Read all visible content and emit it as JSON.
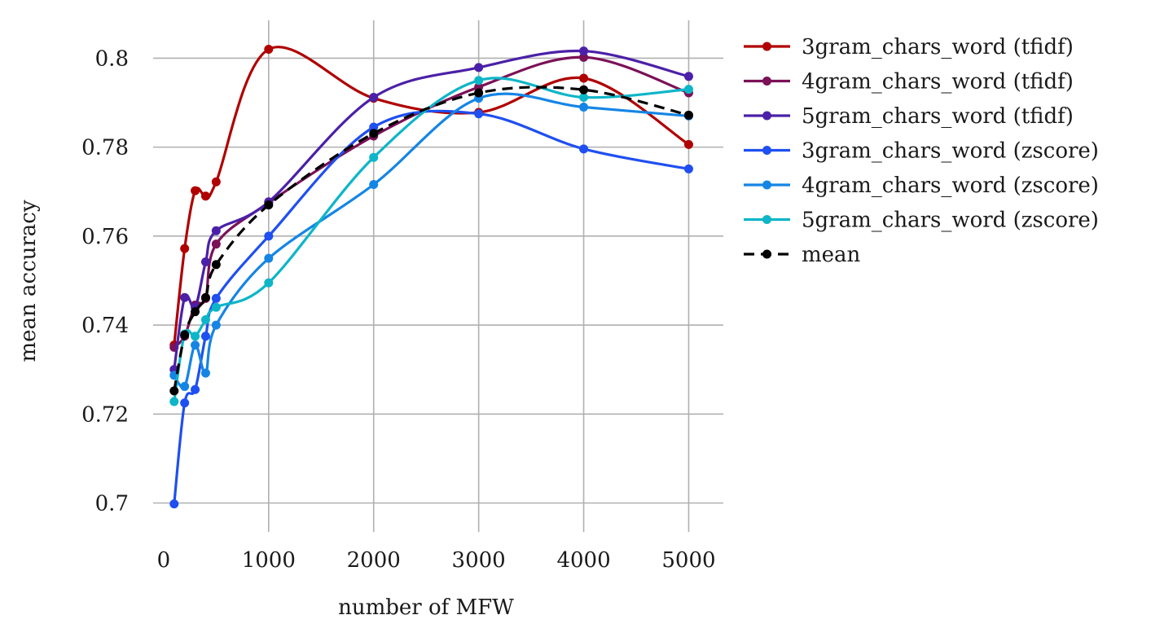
{
  "chart_data": {
    "type": "line",
    "xlabel": "number of MFW",
    "ylabel": "mean accuracy",
    "xlim": [
      -100,
      5330
    ],
    "ylim": [
      0.6935,
      0.8085
    ],
    "grid": true,
    "legend_position": "outside-right-top",
    "x": [
      100,
      200,
      300,
      400,
      500,
      1000,
      2000,
      3000,
      4000,
      5000
    ],
    "xticks": [
      0,
      1000,
      2000,
      3000,
      4000,
      5000
    ],
    "xtick_labels": [
      "0",
      "1000",
      "2000",
      "3000",
      "4000",
      "5000"
    ],
    "yticks": [
      0.7,
      0.72,
      0.74,
      0.76,
      0.78,
      0.8
    ],
    "ytick_labels": [
      "0.7",
      "0.72",
      "0.74",
      "0.76",
      "0.78",
      "0.8"
    ],
    "series": [
      {
        "name": "3gram_chars_word (tfidf)",
        "color": "#b00000",
        "dashed": false,
        "values": [
          0.7355,
          0.7572,
          0.7702,
          0.769,
          0.7722,
          0.802,
          0.791,
          0.7878,
          0.7955,
          0.7806
        ]
      },
      {
        "name": "4gram_chars_word (tfidf)",
        "color": "#7b1157",
        "dashed": false,
        "values": [
          0.735,
          0.7375,
          0.7445,
          0.746,
          0.7582,
          0.7675,
          0.7825,
          0.7935,
          0.8002,
          0.7922
        ]
      },
      {
        "name": "5gram_chars_word (tfidf)",
        "color": "#4b20a8",
        "dashed": false,
        "values": [
          0.73,
          0.7462,
          0.744,
          0.7542,
          0.7612,
          0.7677,
          0.7912,
          0.7979,
          0.8016,
          0.7959
        ]
      },
      {
        "name": "3gram_chars_word (zscore)",
        "color": "#1f4ff0",
        "dashed": false,
        "values": [
          0.6998,
          0.7225,
          0.7255,
          0.7375,
          0.746,
          0.76,
          0.7845,
          0.7875,
          0.7796,
          0.7751
        ]
      },
      {
        "name": "4gram_chars_word (zscore)",
        "color": "#1585e5",
        "dashed": false,
        "values": [
          0.7287,
          0.7262,
          0.7355,
          0.7292,
          0.74,
          0.755,
          0.7716,
          0.791,
          0.789,
          0.787
        ]
      },
      {
        "name": "5gram_chars_word (zscore)",
        "color": "#0eb5c8",
        "dashed": false,
        "values": [
          0.7228,
          0.738,
          0.7375,
          0.7412,
          0.744,
          0.7495,
          0.7777,
          0.795,
          0.7912,
          0.793
        ]
      },
      {
        "name": "mean",
        "color": "#000000",
        "dashed": true,
        "values": [
          0.7252,
          0.7378,
          0.743,
          0.7462,
          0.7536,
          0.767,
          0.7831,
          0.7922,
          0.7929,
          0.7872
        ]
      }
    ]
  }
}
